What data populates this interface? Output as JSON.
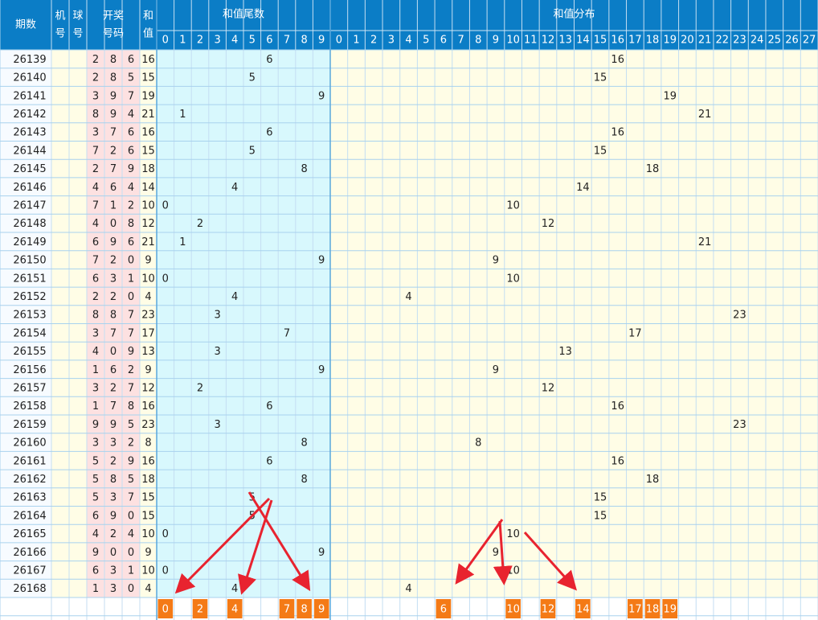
{
  "header": {
    "issue": "期数",
    "machine": [
      "机",
      "号"
    ],
    "ball": [
      "球",
      "号"
    ],
    "draw": [
      "开奖",
      "号码"
    ],
    "sum": [
      "和",
      "值"
    ],
    "tail_title": "和值尾数",
    "dist_title": "和值分布",
    "tail_digits": [
      0,
      1,
      2,
      3,
      4,
      5,
      6,
      7,
      8,
      9
    ],
    "dist_digits": [
      0,
      1,
      2,
      3,
      4,
      5,
      6,
      7,
      8,
      9,
      10,
      11,
      12,
      13,
      14,
      15,
      16,
      17,
      18,
      19,
      20,
      21,
      22,
      23,
      24,
      25,
      26,
      27
    ]
  },
  "rows": [
    {
      "issue": "26139",
      "balls": [
        2,
        8,
        6
      ],
      "sum": 16,
      "tail": 6
    },
    {
      "issue": "26140",
      "balls": [
        2,
        8,
        5
      ],
      "sum": 15,
      "tail": 5
    },
    {
      "issue": "26141",
      "balls": [
        3,
        9,
        7
      ],
      "sum": 19,
      "tail": 9
    },
    {
      "issue": "26142",
      "balls": [
        8,
        9,
        4
      ],
      "sum": 21,
      "tail": 1
    },
    {
      "issue": "26143",
      "balls": [
        3,
        7,
        6
      ],
      "sum": 16,
      "tail": 6
    },
    {
      "issue": "26144",
      "balls": [
        7,
        2,
        6
      ],
      "sum": 15,
      "tail": 5
    },
    {
      "issue": "26145",
      "balls": [
        2,
        7,
        9
      ],
      "sum": 18,
      "tail": 8
    },
    {
      "issue": "26146",
      "balls": [
        4,
        6,
        4
      ],
      "sum": 14,
      "tail": 4
    },
    {
      "issue": "26147",
      "balls": [
        7,
        1,
        2
      ],
      "sum": 10,
      "tail": 0
    },
    {
      "issue": "26148",
      "balls": [
        4,
        0,
        8
      ],
      "sum": 12,
      "tail": 2
    },
    {
      "issue": "26149",
      "balls": [
        6,
        9,
        6
      ],
      "sum": 21,
      "tail": 1
    },
    {
      "issue": "26150",
      "balls": [
        7,
        2,
        0
      ],
      "sum": 9,
      "tail": 9
    },
    {
      "issue": "26151",
      "balls": [
        6,
        3,
        1
      ],
      "sum": 10,
      "tail": 0
    },
    {
      "issue": "26152",
      "balls": [
        2,
        2,
        0
      ],
      "sum": 4,
      "tail": 4
    },
    {
      "issue": "26153",
      "balls": [
        8,
        8,
        7
      ],
      "sum": 23,
      "tail": 3
    },
    {
      "issue": "26154",
      "balls": [
        3,
        7,
        7
      ],
      "sum": 17,
      "tail": 7
    },
    {
      "issue": "26155",
      "balls": [
        4,
        0,
        9
      ],
      "sum": 13,
      "tail": 3
    },
    {
      "issue": "26156",
      "balls": [
        1,
        6,
        2
      ],
      "sum": 9,
      "tail": 9
    },
    {
      "issue": "26157",
      "balls": [
        3,
        2,
        7
      ],
      "sum": 12,
      "tail": 2
    },
    {
      "issue": "26158",
      "balls": [
        1,
        7,
        8
      ],
      "sum": 16,
      "tail": 6
    },
    {
      "issue": "26159",
      "balls": [
        9,
        9,
        5
      ],
      "sum": 23,
      "tail": 3
    },
    {
      "issue": "26160",
      "balls": [
        3,
        3,
        2
      ],
      "sum": 8,
      "tail": 8
    },
    {
      "issue": "26161",
      "balls": [
        5,
        2,
        9
      ],
      "sum": 16,
      "tail": 6
    },
    {
      "issue": "26162",
      "balls": [
        5,
        8,
        5
      ],
      "sum": 18,
      "tail": 8
    },
    {
      "issue": "26163",
      "balls": [
        5,
        3,
        7
      ],
      "sum": 15,
      "tail": 5
    },
    {
      "issue": "26164",
      "balls": [
        6,
        9,
        0
      ],
      "sum": 15,
      "tail": 5
    },
    {
      "issue": "26165",
      "balls": [
        4,
        2,
        4
      ],
      "sum": 10,
      "tail": 0
    },
    {
      "issue": "26166",
      "balls": [
        9,
        0,
        0
      ],
      "sum": 9,
      "tail": 9
    },
    {
      "issue": "26167",
      "balls": [
        6,
        3,
        1
      ],
      "sum": 10,
      "tail": 0
    },
    {
      "issue": "26168",
      "balls": [
        1,
        3,
        0
      ],
      "sum": 4,
      "tail": 4
    }
  ],
  "footer": {
    "tails": [
      0,
      2,
      4,
      7,
      8,
      9
    ],
    "sums": [
      6,
      10,
      12,
      14,
      17,
      18,
      19
    ]
  }
}
